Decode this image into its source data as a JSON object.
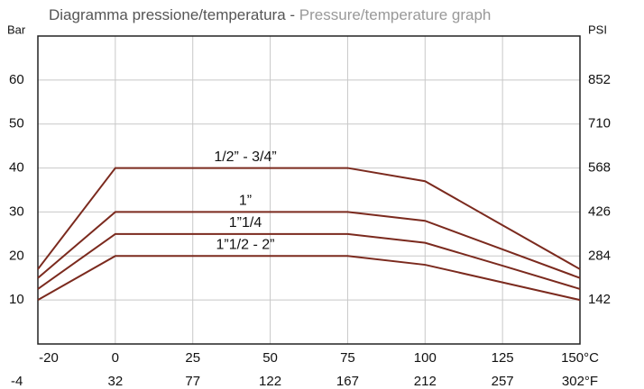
{
  "chart_data": {
    "type": "line",
    "title": "Diagramma pressione/temperatura - ",
    "subtitle": "Pressure/temperature graph",
    "ylabel": "Bar",
    "y2label": "PSI",
    "categories": [
      "-20",
      "0",
      "25",
      "50",
      "75",
      "100",
      "125",
      "150°C"
    ],
    "categories_secondary": [
      "-4",
      "32",
      "77",
      "122",
      "167",
      "212",
      "257",
      "302°F"
    ],
    "ylim": [
      0,
      70
    ],
    "yticks": [
      10,
      20,
      30,
      40,
      50,
      60
    ],
    "y2lim": [
      0,
      994
    ],
    "y2ticks": [
      142,
      284,
      426,
      568,
      710,
      852
    ],
    "grid": true,
    "series": [
      {
        "name": "1/2” - 3/4”",
        "color": "#7b2a1e",
        "values": [
          17,
          40,
          40,
          40,
          40,
          37,
          27,
          17
        ]
      },
      {
        "name": "1”",
        "color": "#7b2a1e",
        "values": [
          15,
          30,
          30,
          30,
          30,
          28,
          21.5,
          15
        ]
      },
      {
        "name": "1”1/4",
        "color": "#7b2a1e",
        "values": [
          12.5,
          25,
          25,
          25,
          25,
          23,
          17.8,
          12.5
        ]
      },
      {
        "name": "1”1/2 - 2”",
        "color": "#7b2a1e",
        "values": [
          10,
          20,
          20,
          20,
          20,
          18,
          14,
          10
        ]
      }
    ]
  }
}
